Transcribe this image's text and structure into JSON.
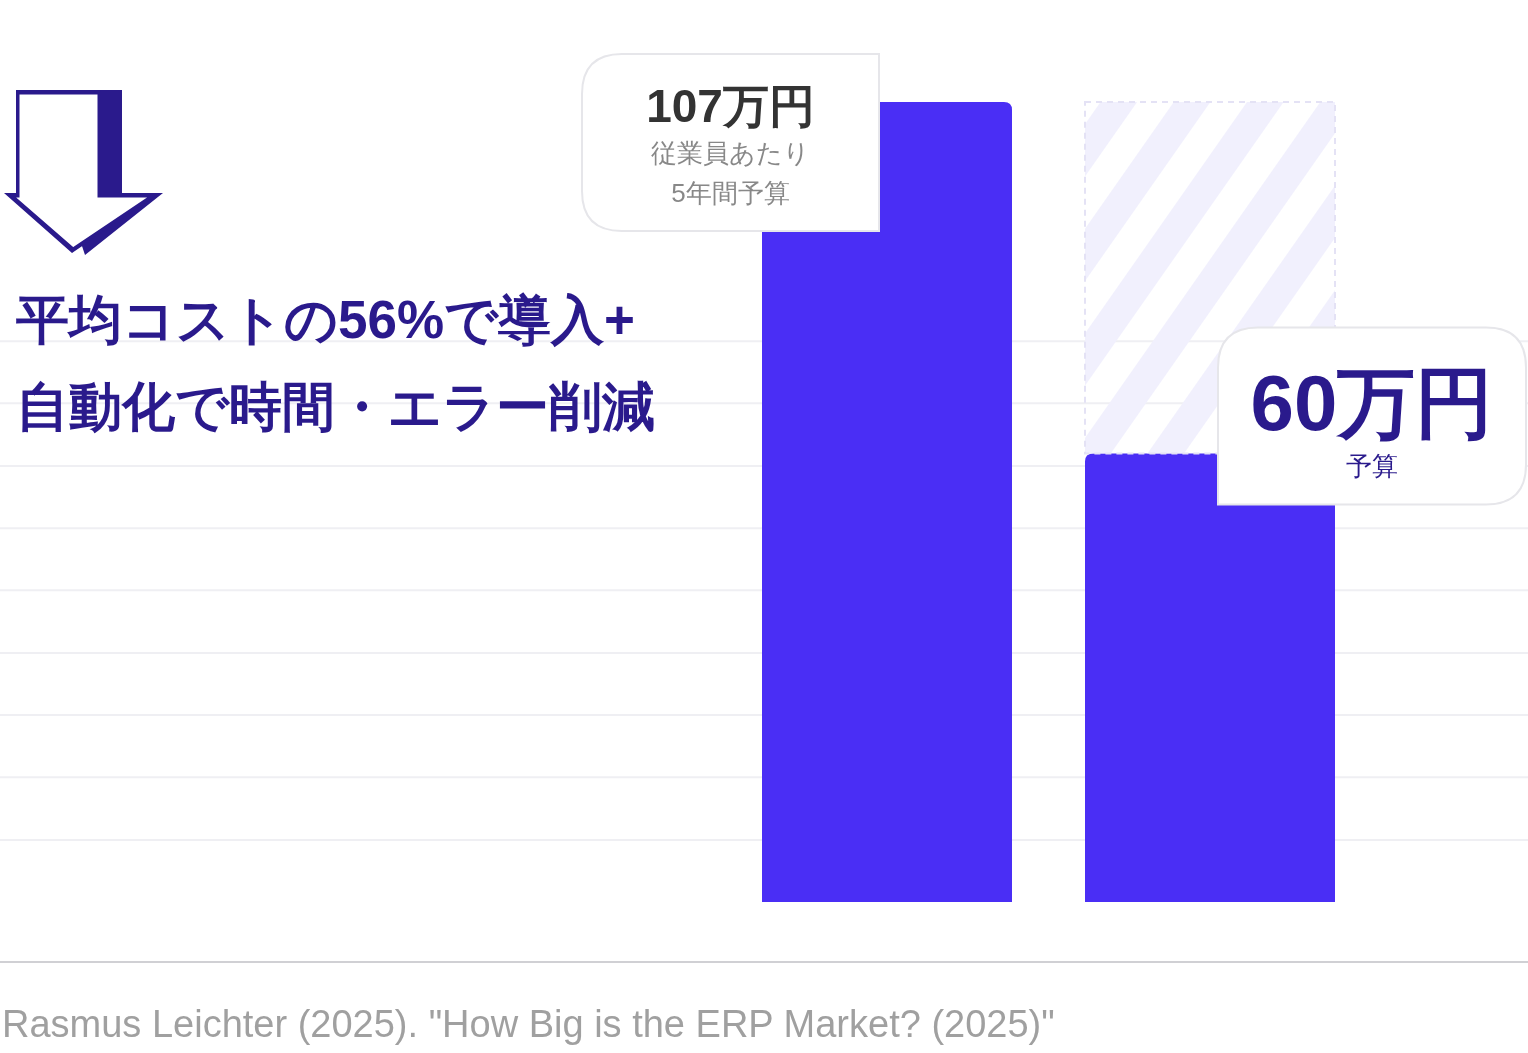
{
  "chart_data": {
    "type": "bar",
    "title": "平均コストの56%で導入+\n自動化で時間・エラー削減",
    "categories": [
      null,
      null
    ],
    "stacked": true,
    "series": [
      {
        "color": "#4a2ef5",
        "values": [
          107,
          60
        ],
        "value_labels": [
          "107万円",
          "60万円"
        ]
      },
      {
        "color": "#f1f0fd",
        "values": [
          null,
          47
        ]
      }
    ],
    "yticks": [
      {
        "value": 8.3,
        "label": null
      },
      {
        "value": 16.7,
        "label": null
      },
      {
        "value": 25,
        "label": null
      },
      {
        "value": 33.3,
        "label": null
      },
      {
        "value": 41.7,
        "label": null
      },
      {
        "value": 50,
        "label": null
      },
      {
        "value": 58.3,
        "label": null
      },
      {
        "value": 66.7,
        "label": null
      },
      {
        "value": 75,
        "label": null
      }
    ],
    "grid": "y",
    "annotations": [
      "従業員あたり\n5年間予算",
      "予算",
      "Rasmus Leichter (2025). \"How Big is the ERP Market? (2025)\""
    ]
  }
}
